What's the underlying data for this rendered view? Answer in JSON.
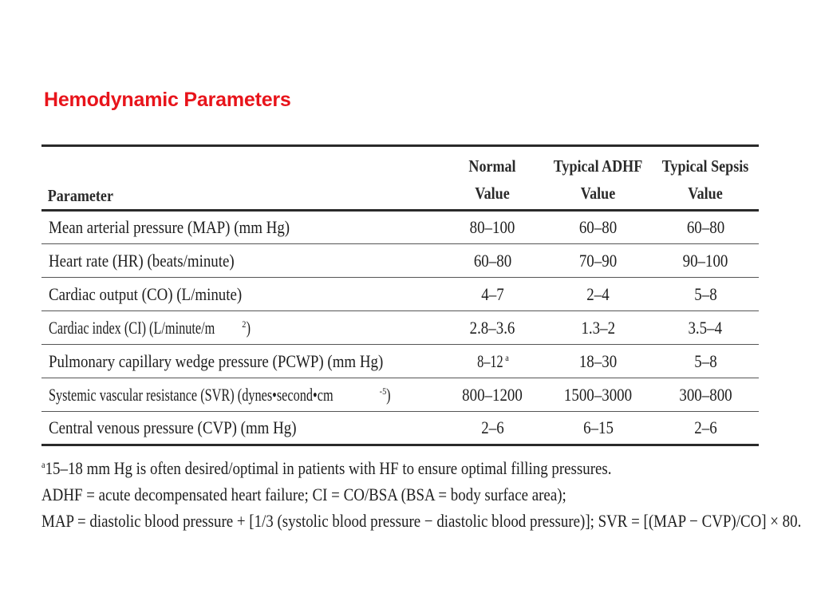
{
  "slide": {
    "title": "Hemodynamic Parameters"
  },
  "table": {
    "headers": {
      "parameter": "Parameter",
      "normal": [
        "Normal",
        "Value"
      ],
      "adhf": [
        "Typical ADHF",
        "Value"
      ],
      "sepsis": [
        "Typical Sepsis",
        "Value"
      ]
    },
    "rows": [
      {
        "parameter": "Mean arterial pressure (MAP) (mm Hg)",
        "normal": "80–100",
        "adhf": "60–80",
        "sepsis": "60–80"
      },
      {
        "parameter": "Heart rate (HR) (beats/minute)",
        "normal": "60–80",
        "adhf": "70–90",
        "sepsis": "90–100"
      },
      {
        "parameter": "Cardiac output (CO) (L/minute)",
        "normal": "4–7",
        "adhf": "2–4",
        "sepsis": "5–8"
      },
      {
        "parameter": "Cardiac index (CI) (L/minute/m",
        "parameter_sup": "2",
        "parameter_tail": ")",
        "normal": "2.8–3.6",
        "adhf": "1.3–2",
        "sepsis": "3.5–4"
      },
      {
        "parameter": "Pulmonary capillary wedge pressure (PCWP) (mm Hg)",
        "normal": "8–12",
        "normal_sup": "a",
        "adhf": "18–30",
        "sepsis": "5–8"
      },
      {
        "parameter": "Systemic vascular resistance (SVR) (dynes•second•cm",
        "parameter_sup": "-5",
        "parameter_tail": ")",
        "normal": "800–1200",
        "adhf": "1500–3000",
        "sepsis": "300–800"
      },
      {
        "parameter": "Central venous pressure (CVP) (mm Hg)",
        "normal": "2–6",
        "adhf": "6–15",
        "sepsis": "2–6"
      }
    ]
  },
  "footnotes": {
    "line1_mark": "a",
    "line1": "15–18 mm Hg is often desired/optimal in patients with HF to ensure optimal filling pressures.",
    "line2": "ADHF = acute decompensated heart failure; CI = CO/BSA (BSA = body surface area);",
    "line3": "MAP = diastolic blood pressure + [1/3 (systolic blood pressure − diastolic blood pressure)]; SVR = [(MAP − CVP)/CO] × 80."
  }
}
